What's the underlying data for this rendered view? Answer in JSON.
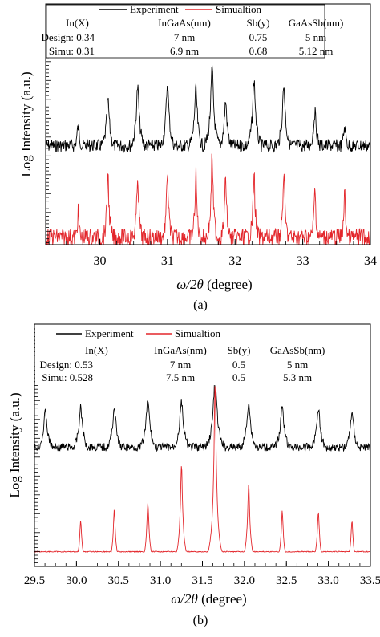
{
  "chart_data": [
    {
      "panel_label": "(a)",
      "type": "line",
      "xlabel_math": "ω/2θ",
      "xlabel_unit": " (degree)",
      "ylabel": "Log Intensity (a.u.)",
      "xlim": [
        29.2,
        34.0
      ],
      "xticks": [
        "30",
        "31",
        "32",
        "33",
        "34"
      ],
      "grid": false,
      "legend_position": "top",
      "series": [
        {
          "name": "Experiment",
          "color": "#000000",
          "peaks": [
            29.68,
            30.12,
            30.56,
            31.0,
            31.42,
            31.66,
            31.86,
            32.28,
            32.72,
            33.18,
            33.62
          ],
          "heights": [
            0.3,
            0.62,
            0.78,
            0.82,
            0.75,
            1.0,
            0.6,
            0.86,
            0.8,
            0.48,
            0.3
          ]
        },
        {
          "name": "Simualtion",
          "color": "#e3262b",
          "peaks": [
            29.68,
            30.12,
            30.56,
            31.0,
            31.42,
            31.66,
            31.86,
            32.28,
            32.72,
            33.18,
            33.62
          ],
          "heights": [
            0.35,
            0.8,
            0.78,
            0.82,
            0.78,
            1.0,
            0.75,
            0.8,
            0.8,
            0.62,
            0.55
          ]
        }
      ],
      "table": {
        "headers": [
          "In(X)",
          "InGaAs(nm)",
          "Sb(y)",
          "GaAsSb(nm)"
        ],
        "rows": [
          [
            "Design: 0.34",
            "7 nm",
            "0.75",
            "5 nm"
          ],
          [
            "Simu: 0.31",
            "6.9 nm",
            "0.68",
            "5.12 nm"
          ]
        ]
      }
    },
    {
      "panel_label": "(b)",
      "type": "line",
      "xlabel_math": "ω/2θ",
      "xlabel_unit": " (degree)",
      "ylabel": "Log Intensity (a.u.)",
      "xlim": [
        29.5,
        33.5
      ],
      "xticks": [
        "29.5",
        "30.0",
        "30.5",
        "31.0",
        "31.5",
        "32.0",
        "32.5",
        "33.0",
        "33.5"
      ],
      "grid": false,
      "legend_position": "top",
      "series": [
        {
          "name": "Experiment",
          "color": "#000000",
          "peaks": [
            29.63,
            30.05,
            30.45,
            30.85,
            31.25,
            31.65,
            32.05,
            32.45,
            32.88,
            33.28
          ],
          "heights": [
            0.55,
            0.6,
            0.6,
            0.7,
            0.68,
            1.0,
            0.68,
            0.63,
            0.6,
            0.55
          ]
        },
        {
          "name": "Simualtion",
          "color": "#e3262b",
          "peaks": [
            30.05,
            30.45,
            30.85,
            31.25,
            31.65,
            32.05,
            32.45,
            32.88,
            33.28
          ],
          "heights": [
            0.25,
            0.3,
            0.35,
            0.55,
            1.0,
            0.45,
            0.3,
            0.3,
            0.25
          ]
        }
      ],
      "table": {
        "headers": [
          "In(X)",
          "InGaAs(nm)",
          "Sb(y)",
          "GaAsSb(nm)"
        ],
        "rows": [
          [
            "Design: 0.53",
            "7 nm",
            "0.5",
            "5 nm"
          ],
          [
            "Simu: 0.528",
            "7.5 nm",
            "0.5",
            "5.3 nm"
          ]
        ]
      }
    }
  ]
}
